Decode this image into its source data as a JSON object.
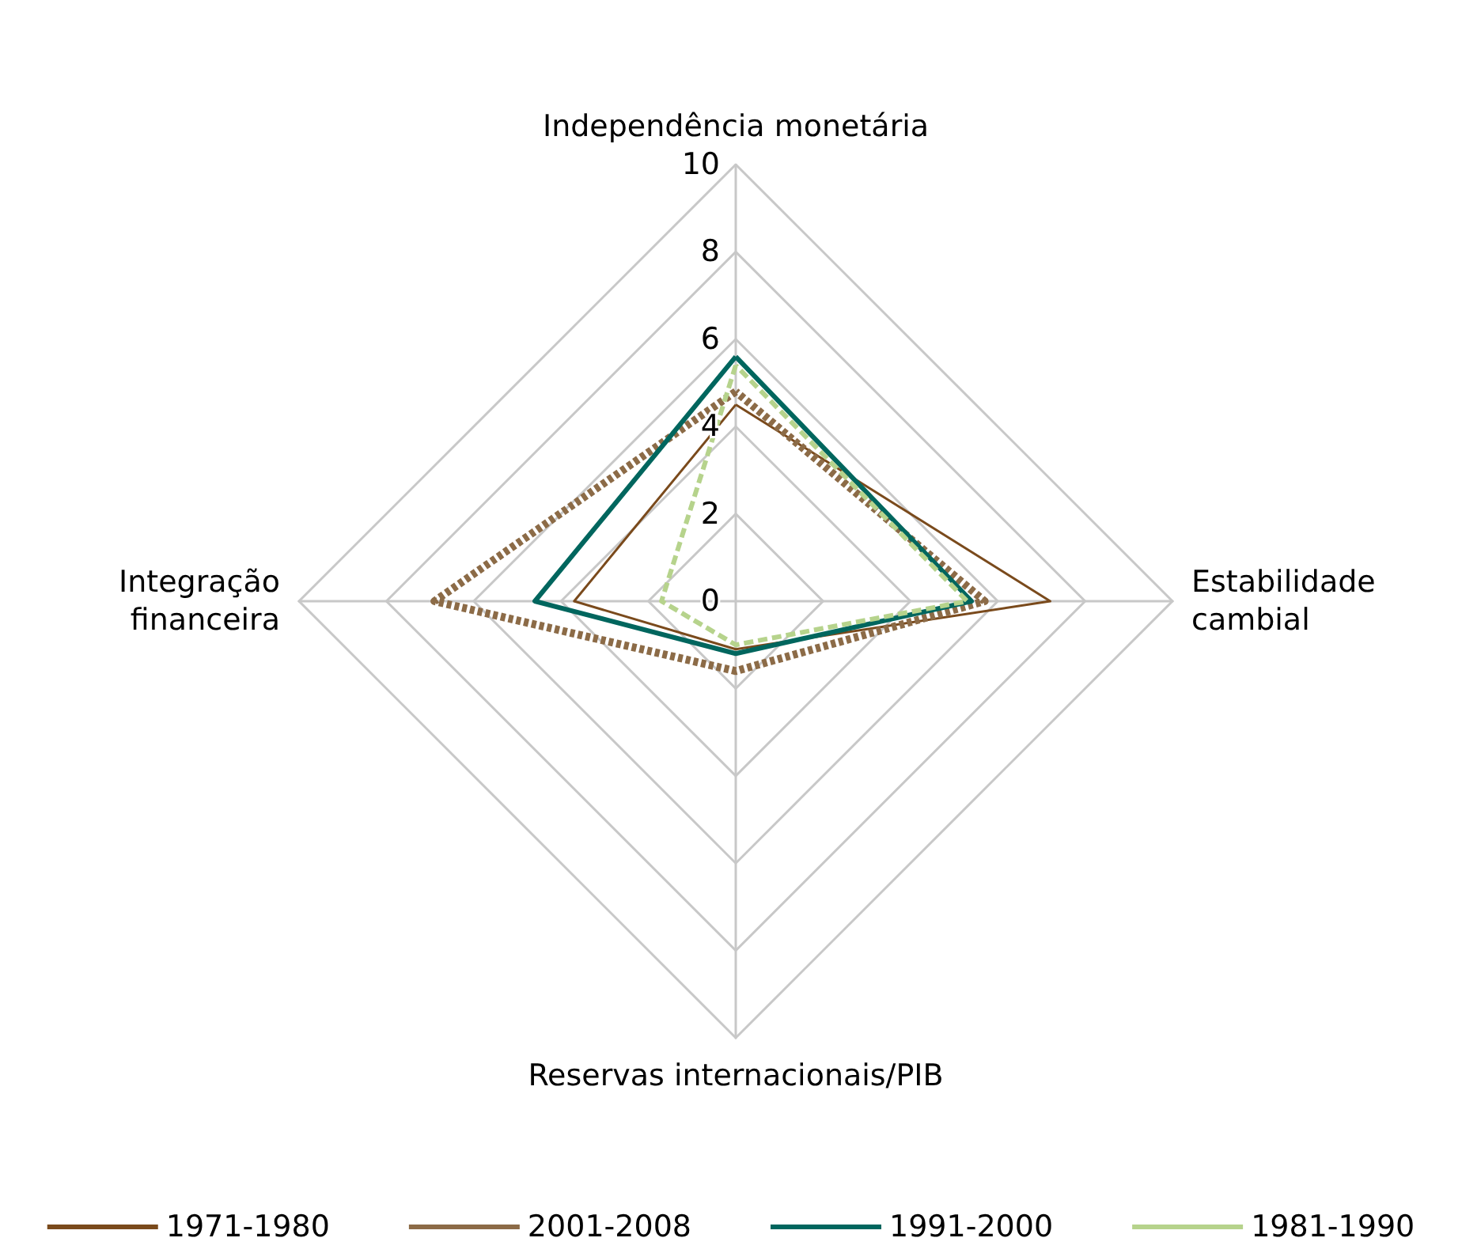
{
  "chart_data": {
    "type": "radar",
    "categories": [
      "Independência monetária",
      "Estabilidade cambial",
      "Reservas internacionais/PIB",
      "Integração financeira"
    ],
    "series": [
      {
        "name": "1971-1980",
        "color": "#7a4a1c",
        "line_style": "solid",
        "values": [
          4.5,
          7.2,
          1.1,
          3.7
        ]
      },
      {
        "name": "2001-2008",
        "color": "#8c6b47",
        "line_style": "dotted",
        "values": [
          4.8,
          5.7,
          1.6,
          6.9
        ]
      },
      {
        "name": "1991-2000",
        "color": "#00665e",
        "line_style": "solid",
        "values": [
          5.6,
          5.4,
          1.2,
          4.6
        ]
      },
      {
        "name": "1981-1990",
        "color": "#b6d38c",
        "line_style": "dashed",
        "values": [
          5.4,
          5.3,
          1.0,
          1.7
        ]
      }
    ],
    "ylim": [
      0,
      10
    ],
    "yticks": [
      0,
      2,
      4,
      6,
      8,
      10
    ],
    "grid": true,
    "legend": "bottom",
    "marker": "none"
  }
}
